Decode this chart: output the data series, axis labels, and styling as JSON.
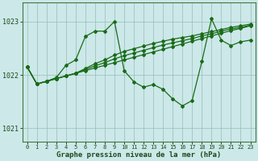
{
  "xlabel": "Graphe pression niveau de la mer (hPa)",
  "bg_color": "#cce8e8",
  "line_color": "#1a6b1a",
  "grid_color": "#99bbbb",
  "ylim": [
    1020.75,
    1023.35
  ],
  "xlim": [
    -0.5,
    23.5
  ],
  "yticks": [
    1021,
    1022,
    1023
  ],
  "xticks": [
    0,
    1,
    2,
    3,
    4,
    5,
    6,
    7,
    8,
    9,
    10,
    11,
    12,
    13,
    14,
    15,
    16,
    17,
    18,
    19,
    20,
    21,
    22,
    23
  ],
  "s_volatile": [
    1022.15,
    1021.83,
    1021.88,
    1021.95,
    1022.18,
    1022.28,
    1022.72,
    1022.82,
    1022.82,
    1023.0,
    1022.08,
    1021.87,
    1021.77,
    1021.82,
    1021.73,
    1021.55,
    1021.42,
    1021.52,
    1022.25,
    1023.05,
    1022.65,
    1022.55,
    1022.62,
    1022.65
  ],
  "s_rise1": [
    1022.15,
    1021.83,
    1021.88,
    1021.93,
    1021.98,
    1022.03,
    1022.08,
    1022.13,
    1022.18,
    1022.23,
    1022.28,
    1022.33,
    1022.38,
    1022.43,
    1022.48,
    1022.53,
    1022.58,
    1022.63,
    1022.68,
    1022.73,
    1022.78,
    1022.83,
    1022.87,
    1022.92
  ],
  "s_rise2": [
    1022.15,
    1021.83,
    1021.88,
    1021.93,
    1021.98,
    1022.03,
    1022.1,
    1022.17,
    1022.23,
    1022.3,
    1022.36,
    1022.41,
    1022.46,
    1022.51,
    1022.56,
    1022.6,
    1022.64,
    1022.68,
    1022.73,
    1022.77,
    1022.82,
    1022.86,
    1022.89,
    1022.93
  ],
  "s_rise3": [
    1022.15,
    1021.83,
    1021.88,
    1021.93,
    1021.98,
    1022.03,
    1022.12,
    1022.21,
    1022.28,
    1022.37,
    1022.44,
    1022.49,
    1022.54,
    1022.59,
    1022.63,
    1022.67,
    1022.7,
    1022.73,
    1022.77,
    1022.81,
    1022.85,
    1022.89,
    1022.92,
    1022.95
  ]
}
